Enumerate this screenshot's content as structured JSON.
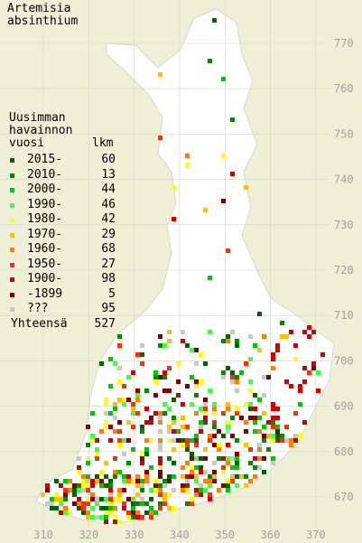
{
  "map": {
    "title": "Artemisia absinthium",
    "legend": {
      "heading": "Uusimman havainnon vuosi",
      "count_heading": "lkm",
      "entries": [
        {
          "label": "2015-",
          "count": 60,
          "color": "#006400"
        },
        {
          "label": "2010-",
          "count": 13,
          "color": "#008c00"
        },
        {
          "label": "2000-",
          "count": 44,
          "color": "#00c800"
        },
        {
          "label": "1990-",
          "count": 46,
          "color": "#40ff40"
        },
        {
          "label": "1980-",
          "count": 42,
          "color": "#ffff00"
        },
        {
          "label": "1970-",
          "count": 29,
          "color": "#ffc000"
        },
        {
          "label": "1960-",
          "count": 68,
          "color": "#ff8000"
        },
        {
          "label": "1950-",
          "count": 27,
          "color": "#ff3000"
        },
        {
          "label": "1900-",
          "count": 98,
          "color": "#d00000"
        },
        {
          "label": "-1899",
          "count": 5,
          "color": "#800000"
        },
        {
          "label": "???",
          "count": 95,
          "color": "#c8c8c8"
        }
      ],
      "total_label": "Yhteensä",
      "total": 527
    },
    "xticks": [
      310,
      320,
      330,
      340,
      350,
      360,
      370
    ],
    "yticks": [
      670,
      680,
      690,
      700,
      710,
      720,
      730,
      740,
      750,
      760,
      770
    ]
  }
}
